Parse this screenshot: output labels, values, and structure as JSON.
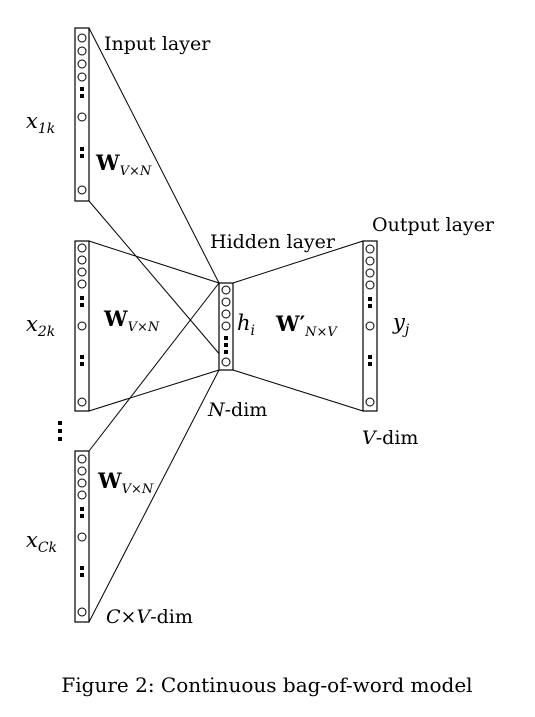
{
  "labels": {
    "input_layer": "Input layer",
    "hidden_layer": "Hidden layer",
    "output_layer": "Output layer",
    "n_dim": {
      "italic": "N",
      "rest": "-dim"
    },
    "v_dim": {
      "italic": "V",
      "rest": "-dim"
    },
    "cv_dim": {
      "pre": "C",
      "times": "×",
      "italic": "V",
      "rest": "-dim"
    }
  },
  "inputs": [
    {
      "var": "x",
      "sub": "1k",
      "weight": "W",
      "weight_sub": "V×N"
    },
    {
      "var": "x",
      "sub": "2k",
      "weight": "W",
      "weight_sub": "V×N"
    },
    {
      "var": "x",
      "sub": "Ck",
      "weight": "W",
      "weight_sub": "V×N"
    }
  ],
  "hidden": {
    "var": "h",
    "sub": "i"
  },
  "output": {
    "var": "y",
    "sub": "j"
  },
  "output_weight": {
    "weight": "W",
    "prime": "′",
    "weight_sub": "N×V"
  },
  "caption": "Figure 2: Continuous bag-of-word model"
}
